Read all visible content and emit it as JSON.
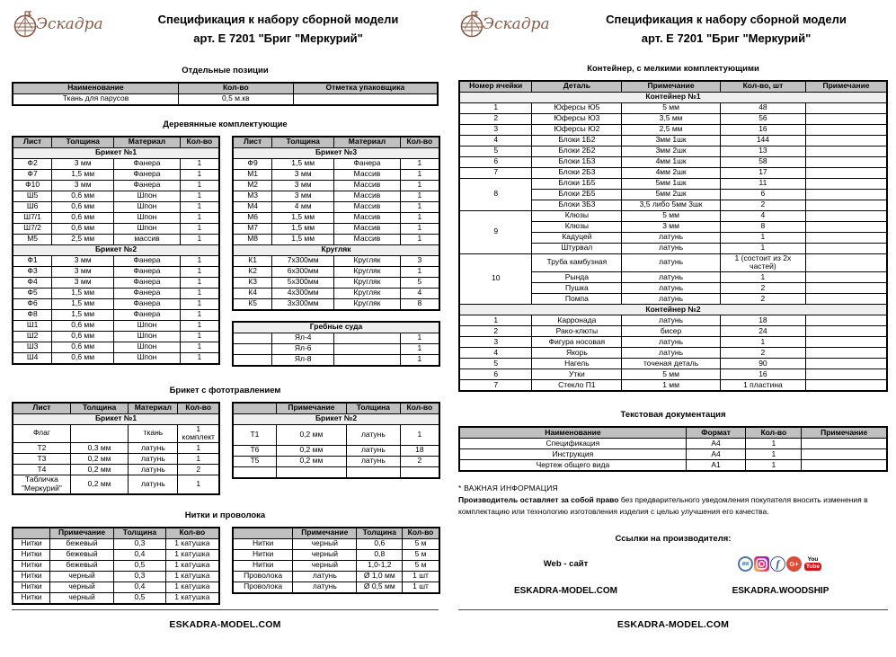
{
  "page": {
    "title_line1": "Спецификация к набору сборной модели",
    "title_line2": "арт. Е 7201 \"Бриг \"Меркурий\"",
    "logo_text": "Эскадра",
    "footer": "ESKADRA-MODEL.COM"
  },
  "left": {
    "headings": {
      "separate": "Отдельные позиции",
      "wood": "Деревянные комплектующие",
      "etch": "Брикет с фототравлением",
      "threads": "Нитки и проволока"
    },
    "separate": {
      "columns": [
        "Наименование",
        "Кол-во",
        "Отметка упаковщика"
      ],
      "widths": [
        "39%",
        "27%",
        "34%"
      ],
      "rows": [
        {
          "cells": [
            "Ткань для парусов",
            "0,5 м.кв",
            ""
          ]
        }
      ]
    },
    "wood1": {
      "columns": [
        "Лист",
        "Толщина",
        "Материал",
        "Кол-во"
      ],
      "widths": [
        "19%",
        "30%",
        "32%",
        "19%"
      ],
      "rows": [
        {
          "section": "Брикет №1"
        },
        {
          "cells": [
            "Ф2",
            "3 мм",
            "Фанера",
            "1"
          ]
        },
        {
          "cells": [
            "Ф7",
            "1,5 мм",
            "Фанера",
            "1"
          ]
        },
        {
          "cells": [
            "Ф10",
            "3 мм",
            "Фанера",
            "1"
          ]
        },
        {
          "cells": [
            "Ш5",
            "0,6 мм",
            "Шпон",
            "1"
          ]
        },
        {
          "cells": [
            "Ш6",
            "0,6 мм",
            "Шпон",
            "1"
          ]
        },
        {
          "cells": [
            "Ш7/1",
            "0,6 мм",
            "Шпон",
            "1"
          ]
        },
        {
          "cells": [
            "Ш7/2",
            "0,6 мм",
            "Шпон",
            "1"
          ]
        },
        {
          "cells": [
            "М5",
            "2,5 мм",
            "массив",
            "1"
          ]
        },
        {
          "section": "Брикет №2"
        },
        {
          "cells": [
            "Ф1",
            "3 мм",
            "Фанера",
            "1"
          ]
        },
        {
          "cells": [
            "Ф3",
            "3 мм",
            "Фанера",
            "1"
          ]
        },
        {
          "cells": [
            "Ф4",
            "3 мм",
            "Фанера",
            "1"
          ]
        },
        {
          "cells": [
            "Ф5",
            "1,5 мм",
            "Фанера",
            "1"
          ]
        },
        {
          "cells": [
            "Ф6",
            "1,5 мм",
            "Фанера",
            "1"
          ]
        },
        {
          "cells": [
            "Ф8",
            "1,5 мм",
            "Фанера",
            "1"
          ]
        },
        {
          "cells": [
            "Ш1",
            "0,6 мм",
            "Шпон",
            "1"
          ]
        },
        {
          "cells": [
            "Ш2",
            "0,6 мм",
            "Шпон",
            "1"
          ]
        },
        {
          "cells": [
            "Ш3",
            "0,6 мм",
            "Шпон",
            "1"
          ]
        },
        {
          "cells": [
            "Ш4",
            "0,6 мм",
            "Шпон",
            "1"
          ]
        }
      ]
    },
    "wood2": {
      "columns": [
        "Лист",
        "Толщина",
        "Материал",
        "Кол-во"
      ],
      "widths": [
        "19%",
        "30%",
        "32%",
        "19%"
      ],
      "rows": [
        {
          "section": "Брикет №3"
        },
        {
          "cells": [
            "Ф9",
            "1,5 мм",
            "Фанера",
            "1"
          ]
        },
        {
          "cells": [
            "М1",
            "3 мм",
            "Массив",
            "1"
          ]
        },
        {
          "cells": [
            "М2",
            "3 мм",
            "Массив",
            "1"
          ]
        },
        {
          "cells": [
            "М3",
            "3 мм",
            "Массив",
            "1"
          ]
        },
        {
          "cells": [
            "М4",
            "4 мм",
            "Массив",
            "1"
          ]
        },
        {
          "cells": [
            "М6",
            "1,5 мм",
            "Массив",
            "1"
          ]
        },
        {
          "cells": [
            "М7",
            "1,5 мм",
            "Массив",
            "1"
          ]
        },
        {
          "cells": [
            "М8",
            "1,5 мм",
            "Массив",
            "1"
          ]
        },
        {
          "section": "Кругляк"
        },
        {
          "cells": [
            "К1",
            "7х300мм",
            "Кругляк",
            "3"
          ]
        },
        {
          "cells": [
            "К2",
            "6х300мм",
            "Кругляк",
            "1"
          ]
        },
        {
          "cells": [
            "К3",
            "5х300мм",
            "Кругляк",
            "5"
          ]
        },
        {
          "cells": [
            "К4",
            "4х300мм",
            "Кругляк",
            "4"
          ]
        },
        {
          "cells": [
            "К5",
            "3х300мм",
            "Кругляк",
            "8"
          ]
        }
      ]
    },
    "rowboats": {
      "ncols": 4,
      "widths": [
        "19%",
        "30%",
        "32%",
        "19%"
      ],
      "rows": [
        {
          "section": "Гребные суда"
        },
        {
          "cells": [
            "",
            "Ял-4",
            "",
            "1"
          ]
        },
        {
          "cells": [
            "",
            "Ял-6",
            "",
            "1"
          ]
        },
        {
          "cells": [
            "",
            "Ял-8",
            "",
            "1"
          ]
        }
      ]
    },
    "etch1": {
      "columns": [
        "Лист",
        "Толщина",
        "Материал",
        "Кол-во"
      ],
      "widths": [
        "28%",
        "28%",
        "24%",
        "20%"
      ],
      "rows": [
        {
          "section": "Брикет №1"
        },
        {
          "cells": [
            "Флаг",
            "",
            "ткань",
            "1 комплект"
          ]
        },
        {
          "cells": [
            "Т2",
            "0,3 мм",
            "латунь",
            "1"
          ]
        },
        {
          "cells": [
            "Т3",
            "0,2 мм",
            "латунь",
            "1"
          ]
        },
        {
          "cells": [
            "Т4",
            "0,2 мм",
            "латунь",
            "2"
          ]
        },
        {
          "cells": [
            "Табличка \"Меркурий\"",
            "0,2 мм",
            "латунь",
            "1"
          ]
        }
      ]
    },
    "etch2": {
      "columns": [
        "",
        "Примечание",
        "Толщина",
        "Кол-во"
      ],
      "widths": [
        "21%",
        "34%",
        "26%",
        "19%"
      ],
      "rows": [
        {
          "section": "Брикет №2"
        },
        {
          "cells": [
            {
              "t": "Т1",
              "h": 22
            },
            "0,2 мм",
            "латунь",
            "1"
          ]
        },
        {
          "cells": [
            "Т6",
            "0,2 мм",
            "латунь",
            "18"
          ]
        },
        {
          "cells": [
            "Т5",
            "0,2 мм",
            "латунь",
            "2"
          ]
        },
        {
          "cells": [
            "",
            "",
            "",
            ""
          ]
        }
      ]
    },
    "threads1": {
      "columns": [
        "",
        "Примечание",
        "Толщина",
        "Кол-во"
      ],
      "widths": [
        "18%",
        "31%",
        "25%",
        "26%"
      ],
      "rows": [
        {
          "cells": [
            "Нитки",
            "бежевый",
            "0,3",
            "1 катушка"
          ]
        },
        {
          "cells": [
            "Нитки",
            "бежевый",
            "0,4",
            "1 катушка"
          ]
        },
        {
          "cells": [
            "Нитки",
            "бежевый",
            "0,5",
            "1 катушка"
          ]
        },
        {
          "cells": [
            "Нитки",
            "черный",
            "0,3",
            "1 катушка"
          ]
        },
        {
          "cells": [
            "Нитки",
            "черный",
            "0,4",
            "1 катушка"
          ]
        },
        {
          "cells": [
            "Нитки",
            "черный",
            "0,5",
            "1 катушка"
          ]
        }
      ]
    },
    "threads2": {
      "columns": [
        "",
        "Примечание",
        "Толщина",
        "Кол-во"
      ],
      "widths": [
        "29%",
        "31%",
        "22%",
        "18%"
      ],
      "rows": [
        {
          "cells": [
            "Нитки",
            "черный",
            "0,6",
            "5 м"
          ]
        },
        {
          "cells": [
            "Нитки",
            "черный",
            "0,8",
            "5 м"
          ]
        },
        {
          "cells": [
            "Нитки",
            "черный",
            "1,0-1,2",
            "5 м"
          ]
        },
        {
          "cells": [
            "Проволока",
            "латунь",
            "Ø 1,0 мм",
            "1 шт"
          ]
        },
        {
          "cells": [
            "Проволока",
            "латунь",
            "Ø 0,5 мм",
            "1 шт"
          ]
        }
      ]
    }
  },
  "right": {
    "headings": {
      "container": "Контейнер, с мелкими комплектующими",
      "docs": "Текстовая документация",
      "links": "Ссылки на производителя:"
    },
    "container": {
      "columns": [
        "Номер ячейки",
        "Деталь",
        "Примечание",
        "Кол-во, шт",
        "Примечание"
      ],
      "widths": [
        "17%",
        "21%",
        "23%",
        "20%",
        "19%"
      ],
      "rows": [
        {
          "section": "Контейнер №1"
        },
        {
          "cells": [
            "1",
            "Юферсы Ю5",
            "5 мм",
            "48",
            ""
          ]
        },
        {
          "cells": [
            "2",
            "Юферсы Ю3",
            "3,5 мм",
            "56",
            ""
          ]
        },
        {
          "cells": [
            "3",
            "Юферсы Ю2",
            "2,5 мм",
            "16",
            ""
          ]
        },
        {
          "cells": [
            "4",
            "Блоки 1Б2",
            "3мм 1шк",
            "144",
            ""
          ]
        },
        {
          "cells": [
            "5",
            "Блоки 2Б2",
            "3мм 2шк",
            "13",
            ""
          ]
        },
        {
          "cells": [
            "6",
            "Блоки 1Б3",
            "4мм 1шк",
            "58",
            ""
          ]
        },
        {
          "cells": [
            "7",
            "Блоки 2Б3",
            "4мм 2шк",
            "17",
            ""
          ]
        },
        {
          "cells": [
            {
              "t": "8",
              "rs": 3
            },
            "Блоки 1Б5",
            "5мм 1шк",
            "11",
            ""
          ]
        },
        {
          "cells": [
            "Блоки 2Б5",
            "5мм 2шк",
            "6",
            ""
          ]
        },
        {
          "cells": [
            "Блоки 3Б3",
            "3,5 либо 5мм 3шк",
            "2",
            ""
          ]
        },
        {
          "cells": [
            {
              "t": "9",
              "rs": 4
            },
            "Клюзы",
            "5 мм",
            "4",
            ""
          ]
        },
        {
          "cells": [
            "Клюзы",
            "3 мм",
            "8",
            ""
          ]
        },
        {
          "cells": [
            "Кадуцей",
            "латунь",
            "1",
            ""
          ]
        },
        {
          "cells": [
            "Штурвал",
            "латунь",
            "1",
            ""
          ]
        },
        {
          "cells": [
            {
              "t": "10",
              "rs": 4
            },
            "Труба камбузная",
            "латунь",
            "1 (состоит из 2х частей)",
            ""
          ]
        },
        {
          "cells": [
            "Рында",
            "латунь",
            "1",
            ""
          ]
        },
        {
          "cells": [
            "Пушка",
            "латунь",
            "2",
            ""
          ]
        },
        {
          "cells": [
            "Помпа",
            "латунь",
            "2",
            ""
          ]
        },
        {
          "section": "Контейнер №2"
        },
        {
          "cells": [
            "1",
            "Карронада",
            "латунь",
            "18",
            ""
          ]
        },
        {
          "cells": [
            "2",
            "Рако-клюты",
            "бисер",
            "24",
            ""
          ]
        },
        {
          "cells": [
            "3",
            "Фигура носовая",
            "латунь",
            "1",
            ""
          ]
        },
        {
          "cells": [
            "4",
            "Якорь",
            "латунь",
            "2",
            ""
          ]
        },
        {
          "cells": [
            "5",
            "Нагель",
            "точеная деталь",
            "90",
            ""
          ]
        },
        {
          "cells": [
            "6",
            "Утки",
            "5 мм",
            "16",
            ""
          ]
        },
        {
          "cells": [
            "7",
            "Стекло П1",
            "1 мм",
            "1 пластина",
            ""
          ]
        }
      ]
    },
    "docs": {
      "columns": [
        "Наименование",
        "Формат",
        "Кол-во",
        "Примечание"
      ],
      "widths": [
        "53%",
        "14%",
        "13%",
        "20%"
      ],
      "rows": [
        {
          "cells": [
            "Спецификация",
            "А4",
            "1",
            ""
          ]
        },
        {
          "cells": [
            "Инструкция",
            "А4",
            "1",
            ""
          ]
        },
        {
          "cells": [
            "Чертеж общего вида",
            "А1",
            "1",
            ""
          ]
        }
      ]
    },
    "important": {
      "title": "* ВАЖНАЯ ИНФОРМАЦИЯ",
      "bold": "Производитель оставляет за собой право",
      "rest": " без предварительного уведомления покупателя вносить изменения в комплектацию или технологию изготовления изделия с целью улучшения его качества."
    },
    "links": {
      "web_label": "Web - сайт",
      "web_value": "ESKADRA-MODEL.COM",
      "social_value": "ESKADRA.WOODSHIP",
      "icons": {
        "vk": "вк",
        "facebook": "f",
        "google_plus": "G+",
        "youtube_top": "You",
        "youtube_bottom": "Tube"
      }
    }
  }
}
